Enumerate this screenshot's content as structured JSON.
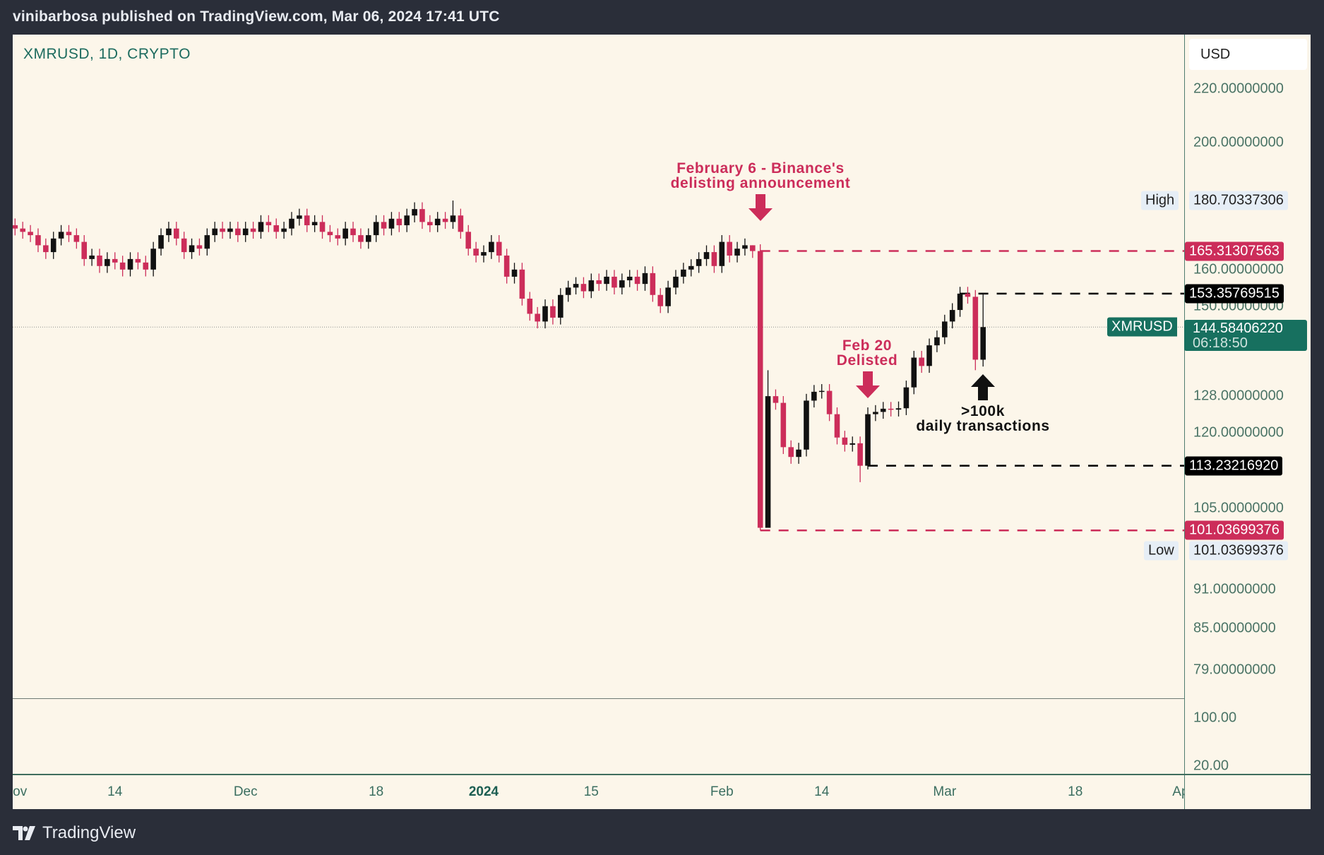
{
  "header": {
    "title": "vinibarbosa published on TradingView.com, Mar 06, 2024 17:41 UTC"
  },
  "symbol": "XMRUSD, 1D, CRYPTO",
  "currency": "USD",
  "footer": {
    "brand": "TradingView",
    "logo_icon": "tradingview-logo-icon"
  },
  "colors": {
    "down": "#cc2d5a",
    "up": "#111111",
    "accent": "#17705f",
    "background": "#fcf6ea",
    "frame": "#2a2e39"
  },
  "price_axis": {
    "scale": "log",
    "ticks": [
      "220.00000000",
      "200.00000000",
      "160.00000000",
      "150.00000000",
      "128.00000000",
      "120.00000000",
      "105.00000000",
      "91.00000000",
      "85.00000000",
      "79.00000000"
    ],
    "high": {
      "label": "High",
      "value": "180.70337306"
    },
    "low": {
      "label": "Low",
      "value": "101.03699376"
    },
    "current": {
      "symbol": "XMRUSD",
      "value": "144.58406220",
      "countdown": "06:18:50"
    },
    "levels": [
      {
        "value": "165.31307563",
        "color": "#cc2d5a"
      },
      {
        "value": "153.35769515",
        "color": "#000000"
      },
      {
        "value": "113.23216920",
        "color": "#000000"
      },
      {
        "value": "101.03699376",
        "color": "#cc2d5a"
      }
    ]
  },
  "lower_pane": {
    "ticks": [
      "100.00",
      "20.00"
    ]
  },
  "time_axis": {
    "labels": [
      {
        "text": "Nov",
        "date": "2023-11-01"
      },
      {
        "text": "14",
        "date": "2023-11-14"
      },
      {
        "text": "Dec",
        "date": "2023-12-01"
      },
      {
        "text": "18",
        "date": "2023-12-18"
      },
      {
        "text": "2024",
        "date": "2024-01-01",
        "bold": true
      },
      {
        "text": "15",
        "date": "2024-01-15"
      },
      {
        "text": "Feb",
        "date": "2024-02-01"
      },
      {
        "text": "14",
        "date": "2024-02-14"
      },
      {
        "text": "Mar",
        "date": "2024-03-01"
      },
      {
        "text": "18",
        "date": "2024-03-18"
      },
      {
        "text": "Apr",
        "date": "2024-04-01"
      }
    ]
  },
  "annotations": {
    "binance": {
      "line1": "February 6 - Binance's",
      "line2": "delisting announcement",
      "color": "#cc2d5a",
      "icon": "arrow-down-icon"
    },
    "delisted": {
      "line1": "Feb 20",
      "line2": "Delisted",
      "color": "#cc2d5a",
      "icon": "arrow-down-icon"
    },
    "transactions": {
      "line1": ">100k",
      "line2": "daily transactions",
      "color": "#111111",
      "icon": "arrow-up-icon"
    }
  },
  "chart_data": {
    "type": "candlestick",
    "symbol": "XMRUSD",
    "interval": "1D",
    "y_scale": "log",
    "ylim": [
      76,
      232
    ],
    "xlim": [
      "2023-11-01",
      "2024-04-03"
    ],
    "grid": false,
    "note_open": "open equals previous close",
    "wick_extremes": {
      "2023-12-28": {
        "high": 180.70337306
      },
      "2024-02-06": {
        "low": 101.03699376
      },
      "2024-02-07": {
        "high": 134,
        "low": 102
      },
      "2024-02-19": {
        "low": 110
      },
      "2024-02-20": {
        "low": 112.5
      },
      "2024-03-05": {
        "low": 134
      },
      "2024-03-06": {
        "high": 153.5
      },
      "2024-02-05": {
        "high": 167
      }
    },
    "closes": [
      [
        "2023-11-01",
        172
      ],
      [
        "2023-11-02",
        171
      ],
      [
        "2023-11-03",
        170
      ],
      [
        "2023-11-04",
        167
      ],
      [
        "2023-11-05",
        165
      ],
      [
        "2023-11-06",
        169
      ],
      [
        "2023-11-07",
        171
      ],
      [
        "2023-11-08",
        170
      ],
      [
        "2023-11-09",
        168
      ],
      [
        "2023-11-10",
        163
      ],
      [
        "2023-11-11",
        164
      ],
      [
        "2023-11-12",
        161
      ],
      [
        "2023-11-13",
        163
      ],
      [
        "2023-11-14",
        162
      ],
      [
        "2023-11-15",
        160
      ],
      [
        "2023-11-16",
        163
      ],
      [
        "2023-11-17",
        162
      ],
      [
        "2023-11-18",
        160
      ],
      [
        "2023-11-19",
        166
      ],
      [
        "2023-11-20",
        170
      ],
      [
        "2023-11-21",
        172
      ],
      [
        "2023-11-22",
        169
      ],
      [
        "2023-11-23",
        165
      ],
      [
        "2023-11-24",
        167
      ],
      [
        "2023-11-25",
        166
      ],
      [
        "2023-11-26",
        170
      ],
      [
        "2023-11-27",
        172
      ],
      [
        "2023-11-28",
        171
      ],
      [
        "2023-11-29",
        172
      ],
      [
        "2023-11-30",
        170
      ],
      [
        "2023-12-01",
        172
      ],
      [
        "2023-12-02",
        171
      ],
      [
        "2023-12-03",
        174
      ],
      [
        "2023-12-04",
        173
      ],
      [
        "2023-12-05",
        171
      ],
      [
        "2023-12-06",
        172
      ],
      [
        "2023-12-07",
        175
      ],
      [
        "2023-12-08",
        176
      ],
      [
        "2023-12-09",
        173
      ],
      [
        "2023-12-10",
        174
      ],
      [
        "2023-12-11",
        171
      ],
      [
        "2023-12-12",
        170
      ],
      [
        "2023-12-13",
        169
      ],
      [
        "2023-12-14",
        172
      ],
      [
        "2023-12-15",
        170
      ],
      [
        "2023-12-16",
        168
      ],
      [
        "2023-12-17",
        170
      ],
      [
        "2023-12-18",
        174
      ],
      [
        "2023-12-19",
        172
      ],
      [
        "2023-12-20",
        175
      ],
      [
        "2023-12-21",
        173
      ],
      [
        "2023-12-22",
        176
      ],
      [
        "2023-12-23",
        178
      ],
      [
        "2023-12-24",
        174
      ],
      [
        "2023-12-25",
        173
      ],
      [
        "2023-12-26",
        175
      ],
      [
        "2023-12-27",
        174
      ],
      [
        "2023-12-28",
        176
      ],
      [
        "2023-12-29",
        171
      ],
      [
        "2023-12-30",
        166
      ],
      [
        "2023-12-31",
        164
      ],
      [
        "2024-01-01",
        165
      ],
      [
        "2024-01-02",
        168
      ],
      [
        "2024-01-03",
        164
      ],
      [
        "2024-01-04",
        158
      ],
      [
        "2024-01-05",
        160
      ],
      [
        "2024-01-06",
        152
      ],
      [
        "2024-01-07",
        148
      ],
      [
        "2024-01-08",
        146
      ],
      [
        "2024-01-09",
        150
      ],
      [
        "2024-01-10",
        147
      ],
      [
        "2024-01-11",
        153
      ],
      [
        "2024-01-12",
        155
      ],
      [
        "2024-01-13",
        156
      ],
      [
        "2024-01-14",
        154
      ],
      [
        "2024-01-15",
        157
      ],
      [
        "2024-01-16",
        156
      ],
      [
        "2024-01-17",
        158
      ],
      [
        "2024-01-18",
        155
      ],
      [
        "2024-01-19",
        157
      ],
      [
        "2024-01-20",
        158
      ],
      [
        "2024-01-21",
        156
      ],
      [
        "2024-01-22",
        159
      ],
      [
        "2024-01-23",
        153
      ],
      [
        "2024-01-24",
        150
      ],
      [
        "2024-01-25",
        155
      ],
      [
        "2024-01-26",
        158
      ],
      [
        "2024-01-27",
        160
      ],
      [
        "2024-01-28",
        161
      ],
      [
        "2024-01-29",
        163
      ],
      [
        "2024-01-30",
        165
      ],
      [
        "2024-01-31",
        161
      ],
      [
        "2024-02-01",
        168
      ],
      [
        "2024-02-02",
        164
      ],
      [
        "2024-02-03",
        166
      ],
      [
        "2024-02-04",
        167
      ],
      [
        "2024-02-05",
        165.31
      ],
      [
        "2024-02-06",
        101.5
      ],
      [
        "2024-02-07",
        128
      ],
      [
        "2024-02-08",
        126.5
      ],
      [
        "2024-02-09",
        117
      ],
      [
        "2024-02-10",
        115
      ],
      [
        "2024-02-11",
        116.5
      ],
      [
        "2024-02-12",
        127
      ],
      [
        "2024-02-13",
        129
      ],
      [
        "2024-02-14",
        129.2
      ],
      [
        "2024-02-15",
        124
      ],
      [
        "2024-02-16",
        119
      ],
      [
        "2024-02-17",
        117.5
      ],
      [
        "2024-02-18",
        117.8
      ],
      [
        "2024-02-19",
        113.23
      ],
      [
        "2024-02-20",
        124
      ],
      [
        "2024-02-21",
        124.5
      ],
      [
        "2024-02-22",
        125.2
      ],
      [
        "2024-02-23",
        125
      ],
      [
        "2024-02-24",
        125.3
      ],
      [
        "2024-02-25",
        130
      ],
      [
        "2024-02-26",
        137
      ],
      [
        "2024-02-27",
        135
      ],
      [
        "2024-02-28",
        140
      ],
      [
        "2024-02-29",
        142
      ],
      [
        "2024-03-01",
        146
      ],
      [
        "2024-03-02",
        149
      ],
      [
        "2024-03-03",
        153.36
      ],
      [
        "2024-03-04",
        152.5
      ],
      [
        "2024-03-05",
        136.5
      ],
      [
        "2024-03-06",
        144.58
      ]
    ]
  }
}
